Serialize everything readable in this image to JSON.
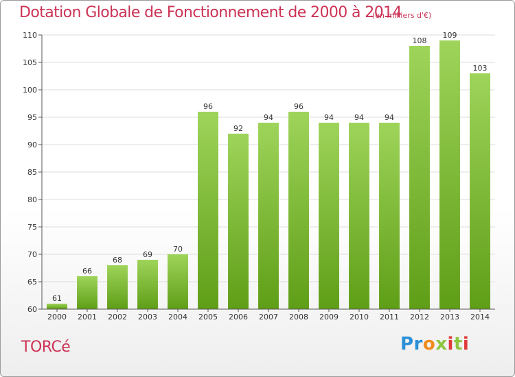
{
  "header": {
    "title": "Dotation Globale de Fonctionnement de 2000 à 2014",
    "unit": "(en milliers d'€)"
  },
  "footer": {
    "commune": "TORCé",
    "logo": "Proxiti"
  },
  "colors": {
    "title": "#cc3355",
    "bar_top": "#9ed45a",
    "bar_bottom": "#5f9e17",
    "grid": "#dddddd"
  },
  "chart_data": {
    "type": "bar",
    "categories": [
      "2000",
      "2001",
      "2002",
      "2003",
      "2004",
      "2005",
      "2006",
      "2007",
      "2008",
      "2009",
      "2010",
      "2011",
      "2012",
      "2013",
      "2014"
    ],
    "values": [
      61,
      66,
      68,
      69,
      70,
      96,
      92,
      94,
      96,
      94,
      94,
      94,
      108,
      109,
      103
    ],
    "title": "Dotation Globale de Fonctionnement de 2000 à 2014",
    "ylim": [
      60,
      110
    ],
    "yticks": [
      60,
      65,
      70,
      75,
      80,
      85,
      90,
      95,
      100,
      105,
      110
    ],
    "grid": true,
    "data_labels": true
  }
}
